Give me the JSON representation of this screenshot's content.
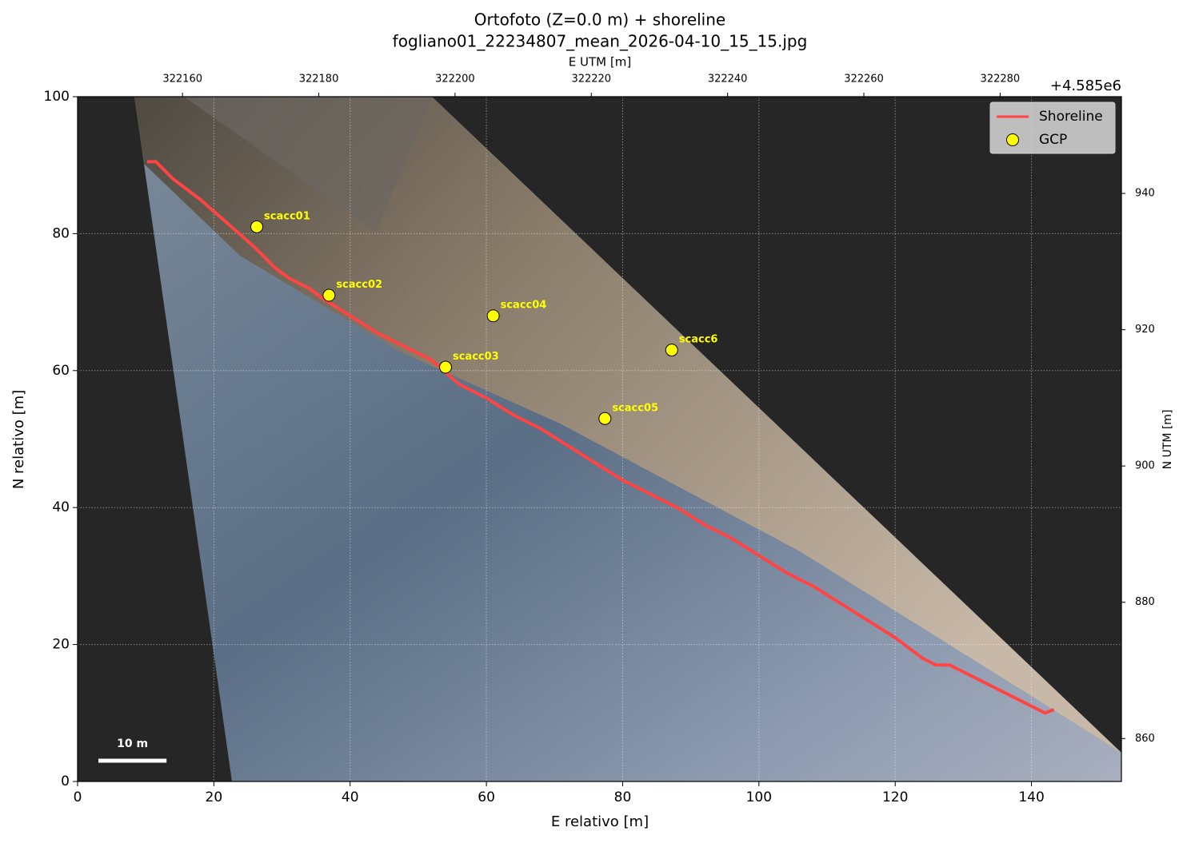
{
  "chart_data": {
    "type": "line",
    "title": "Ortofoto (Z=0.0 m) + shoreline",
    "subtitle": "fogliano01_22234807_mean_2026-04-10_15_15.jpg",
    "xlabel": "E relativo [m]",
    "ylabel": "N relativo [m]",
    "x2label": "E UTM [m]",
    "y2label": "N UTM [m]",
    "y2_offset_label": "+4.585e6",
    "xlim": [
      0,
      153.2
    ],
    "ylim": [
      0,
      100
    ],
    "xticks": [
      0,
      20,
      40,
      60,
      80,
      100,
      120,
      140
    ],
    "yticks": [
      0,
      20,
      40,
      60,
      80,
      100
    ],
    "x2lim": [
      322144.6,
      322297.8
    ],
    "x2ticks": [
      322160,
      322180,
      322200,
      322220,
      322240,
      322260,
      322280
    ],
    "y2lim": [
      853.7,
      954.2
    ],
    "y2ticks": [
      860,
      880,
      900,
      920,
      940
    ],
    "grid": true,
    "legend": "upper right",
    "series": [
      {
        "name": "Shoreline",
        "color": "#ff4444",
        "x": [
          10.2,
          11.5,
          14,
          18,
          22,
          26,
          29,
          31,
          34,
          36,
          40,
          44,
          48,
          52,
          56,
          60,
          64,
          68,
          72,
          76,
          80,
          84,
          88,
          92,
          96,
          100,
          104,
          108,
          112,
          116,
          120,
          124,
          126,
          128,
          130,
          132,
          134,
          136,
          138,
          140,
          142,
          143.3
        ],
        "y": [
          90.5,
          90.5,
          88,
          85,
          81.5,
          78,
          75,
          73.5,
          72,
          70.5,
          68,
          65.5,
          63.5,
          61.5,
          58,
          56,
          53.5,
          51.5,
          49,
          46.5,
          44,
          42,
          40,
          37.5,
          35.5,
          33,
          30.5,
          28.5,
          26,
          23.5,
          21,
          18,
          17,
          17,
          16,
          15,
          14,
          13,
          12,
          11,
          10,
          10.5
        ]
      },
      {
        "name": "GCP",
        "type": "scatter",
        "color": "#ffff00",
        "x": [
          26.3,
          36.9,
          61,
          54,
          87.2,
          77.4
        ],
        "y": [
          81,
          71,
          68,
          60.5,
          63,
          53
        ],
        "labels": [
          "scacc01",
          "scacc02",
          "scacc04",
          "scacc03",
          "scacc6",
          "scacc05"
        ]
      }
    ],
    "scale_bar": {
      "length": 10,
      "label": "10 m"
    }
  }
}
